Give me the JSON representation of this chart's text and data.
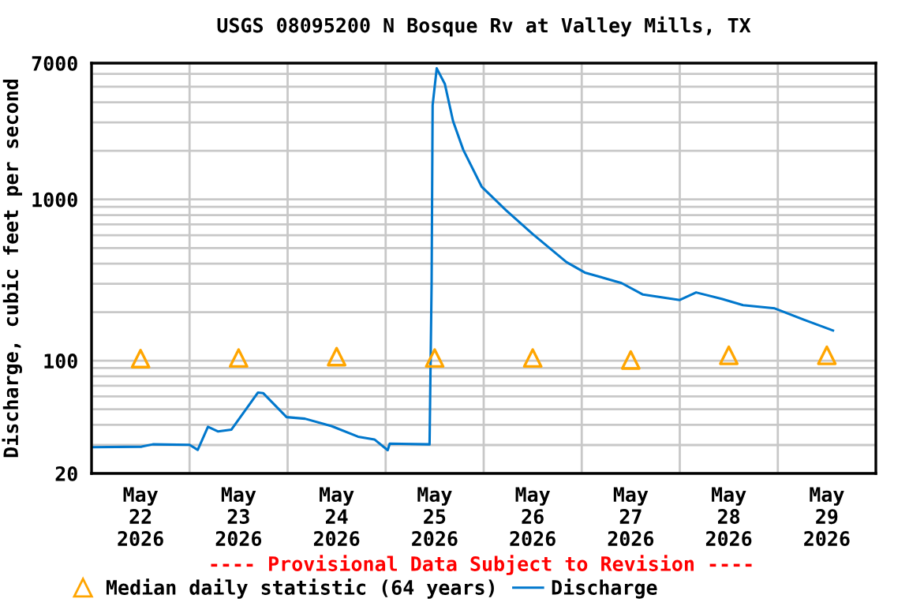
{
  "chart_data": {
    "type": "line",
    "title": "USGS 08095200 N Bosque Rv at Valley Mills, TX",
    "ylabel": "Discharge, cubic feet per second",
    "annotations": [
      "---- Provisional Data Subject to Revision ----"
    ],
    "log": "y",
    "grid": true,
    "legend": "bottom",
    "xlim": [
      "2026-05-22T00:00",
      "2026-05-30T00:00"
    ],
    "xticks": [
      {
        "value": "2026-05-22T00:00",
        "label": null
      },
      {
        "value": "2026-05-22T12:00",
        "label": "May\n22\n2026"
      },
      {
        "value": "2026-05-23T00:00",
        "label": null
      },
      {
        "value": "2026-05-23T12:00",
        "label": "May\n23\n2026"
      },
      {
        "value": "2026-05-24T00:00",
        "label": null
      },
      {
        "value": "2026-05-24T12:00",
        "label": "May\n24\n2026"
      },
      {
        "value": "2026-05-25T00:00",
        "label": null
      },
      {
        "value": "2026-05-25T12:00",
        "label": "May\n25\n2026"
      },
      {
        "value": "2026-05-26T00:00",
        "label": null
      },
      {
        "value": "2026-05-26T12:00",
        "label": "May\n26\n2026"
      },
      {
        "value": "2026-05-27T00:00",
        "label": null
      },
      {
        "value": "2026-05-27T12:00",
        "label": "May\n27\n2026"
      },
      {
        "value": "2026-05-28T00:00",
        "label": null
      },
      {
        "value": "2026-05-28T12:00",
        "label": "May\n28\n2026"
      },
      {
        "value": "2026-05-29T00:00",
        "label": null
      },
      {
        "value": "2026-05-29T12:00",
        "label": "May\n29\n2026"
      },
      {
        "value": "2026-05-30T00:00",
        "label": null
      }
    ],
    "ylim": [
      20,
      7000
    ],
    "yticks": [
      20,
      {
        "value": 30,
        "label": null
      },
      {
        "value": 40,
        "label": null
      },
      {
        "value": 50,
        "label": null
      },
      {
        "value": 60,
        "label": null
      },
      {
        "value": 70,
        "label": null
      },
      {
        "value": 80,
        "label": null
      },
      {
        "value": 90,
        "label": null
      },
      100,
      {
        "value": 200,
        "label": null
      },
      {
        "value": 300,
        "label": null
      },
      {
        "value": 400,
        "label": null
      },
      {
        "value": 500,
        "label": null
      },
      {
        "value": 600,
        "label": null
      },
      {
        "value": 700,
        "label": null
      },
      {
        "value": 800,
        "label": null
      },
      {
        "value": 900,
        "label": null
      },
      1000,
      {
        "value": 2000,
        "label": null
      },
      {
        "value": 3000,
        "label": null
      },
      {
        "value": 4000,
        "label": null
      },
      {
        "value": 5000,
        "label": null
      },
      {
        "value": 6000,
        "label": null
      },
      7000
    ],
    "series": [
      {
        "name": "Median daily statistic (64 years)",
        "type": "scatter",
        "marker": "triangle",
        "color": "#ffa500",
        "x": [
          "2026-05-22T12:00",
          "2026-05-23T12:00",
          "2026-05-24T12:00",
          "2026-05-25T12:00",
          "2026-05-26T12:00",
          "2026-05-27T12:00",
          "2026-05-28T12:00",
          "2026-05-29T12:00"
        ],
        "values": [
          103,
          104,
          106,
          104,
          104,
          101,
          108,
          108
        ]
      },
      {
        "name": "Discharge",
        "color": "#0077cc",
        "x": [
          "2026-05-22T00:00",
          "2026-05-22T12:15",
          "2026-05-22T15:00",
          "2026-05-23T00:00",
          "2026-05-23T02:00",
          "2026-05-23T04:30",
          "2026-05-23T07:00",
          "2026-05-23T10:15",
          "2026-05-23T16:45",
          "2026-05-23T18:00",
          "2026-05-23T23:45",
          "2026-05-24T04:15",
          "2026-05-24T10:45",
          "2026-05-24T17:15",
          "2026-05-24T21:15",
          "2026-05-25T00:30",
          "2026-05-25T01:00",
          "2026-05-25T10:45",
          "2026-05-25T11:15",
          "2026-05-25T11:30",
          "2026-05-25T12:30",
          "2026-05-25T14:30",
          "2026-05-25T16:30",
          "2026-05-25T19:00",
          "2026-05-25T23:30",
          "2026-05-26T05:30",
          "2026-05-26T12:00",
          "2026-05-26T20:15",
          "2026-05-27T00:45",
          "2026-05-27T09:45",
          "2026-05-27T15:00",
          "2026-05-28T00:00",
          "2026-05-28T04:00",
          "2026-05-28T10:15",
          "2026-05-28T15:30",
          "2026-05-28T23:15",
          "2026-05-29T07:00",
          "2026-05-29T13:30"
        ],
        "values": [
          29.1,
          29.3,
          30.3,
          30.1,
          28.0,
          38.9,
          36.4,
          37.4,
          63.5,
          63,
          44.7,
          43.7,
          39.3,
          33.8,
          32.5,
          27.9,
          30.6,
          30.3,
          303,
          3840,
          6500,
          5190,
          3060,
          2030,
          1200,
          855,
          610,
          409,
          352,
          303,
          257,
          238,
          265,
          242,
          221,
          211,
          177,
          154
        ]
      }
    ]
  }
}
